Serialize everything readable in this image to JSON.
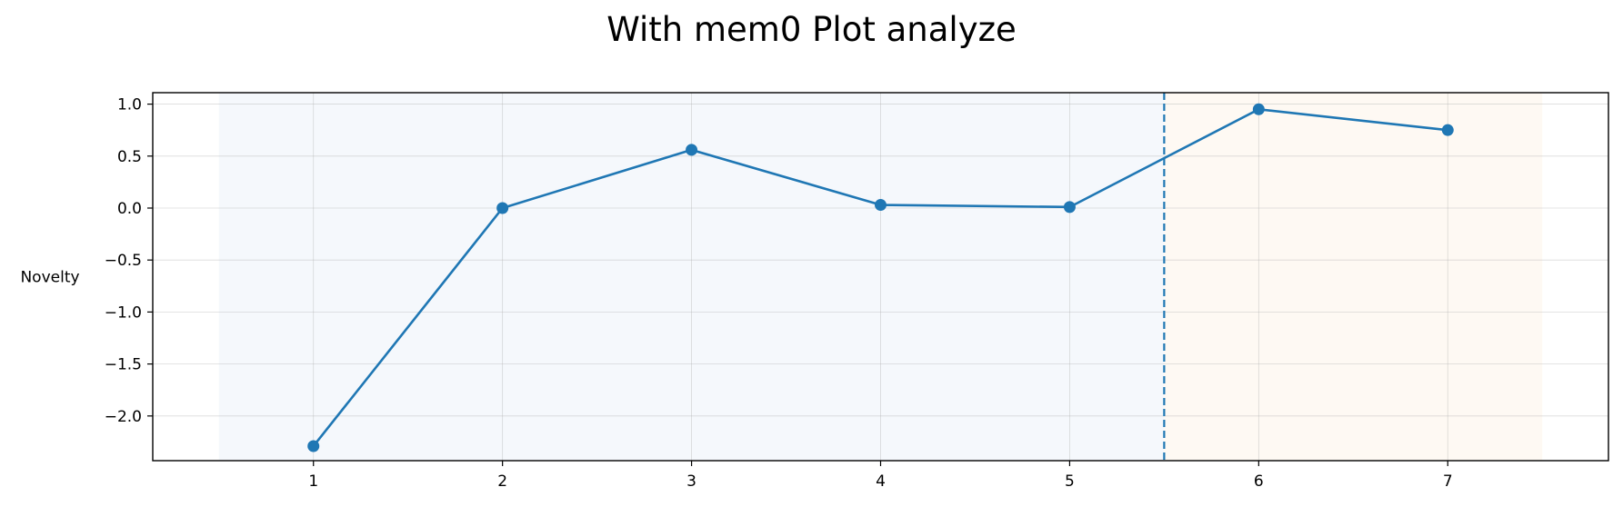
{
  "chart_data": {
    "type": "line",
    "title": "With mem0 Plot analyze",
    "xlabel": "",
    "ylabel": "Novelty",
    "x": [
      1,
      2,
      3,
      4,
      5,
      6,
      7
    ],
    "series": [
      {
        "values": [
          -2.29,
          0.0,
          0.56,
          0.03,
          0.01,
          0.95,
          0.75
        ],
        "color": "#1f77b4",
        "marker": "circle"
      }
    ],
    "xlim": [
      0.15,
      7.85
    ],
    "ylim": [
      -2.43,
      1.11
    ],
    "xticks": [
      1,
      2,
      3,
      4,
      5,
      6,
      7
    ],
    "yticks": [
      1.0,
      0.5,
      0.0,
      -0.5,
      -1.0,
      -1.5,
      -2.0
    ],
    "ytick_labels": [
      "1.0",
      "0.5",
      "0.0",
      "−0.5",
      "−1.0",
      "−1.5",
      "−2.0"
    ],
    "vline": {
      "x": 5.5,
      "style": "dashed",
      "color": "#1f77b4"
    },
    "shaded_regions": [
      {
        "x_start": 0.5,
        "x_end": 5.5,
        "color": "#f5f8fc"
      },
      {
        "x_start": 5.5,
        "x_end": 7.5,
        "color": "#fef9f3"
      }
    ],
    "grid": true,
    "legend": "none"
  }
}
